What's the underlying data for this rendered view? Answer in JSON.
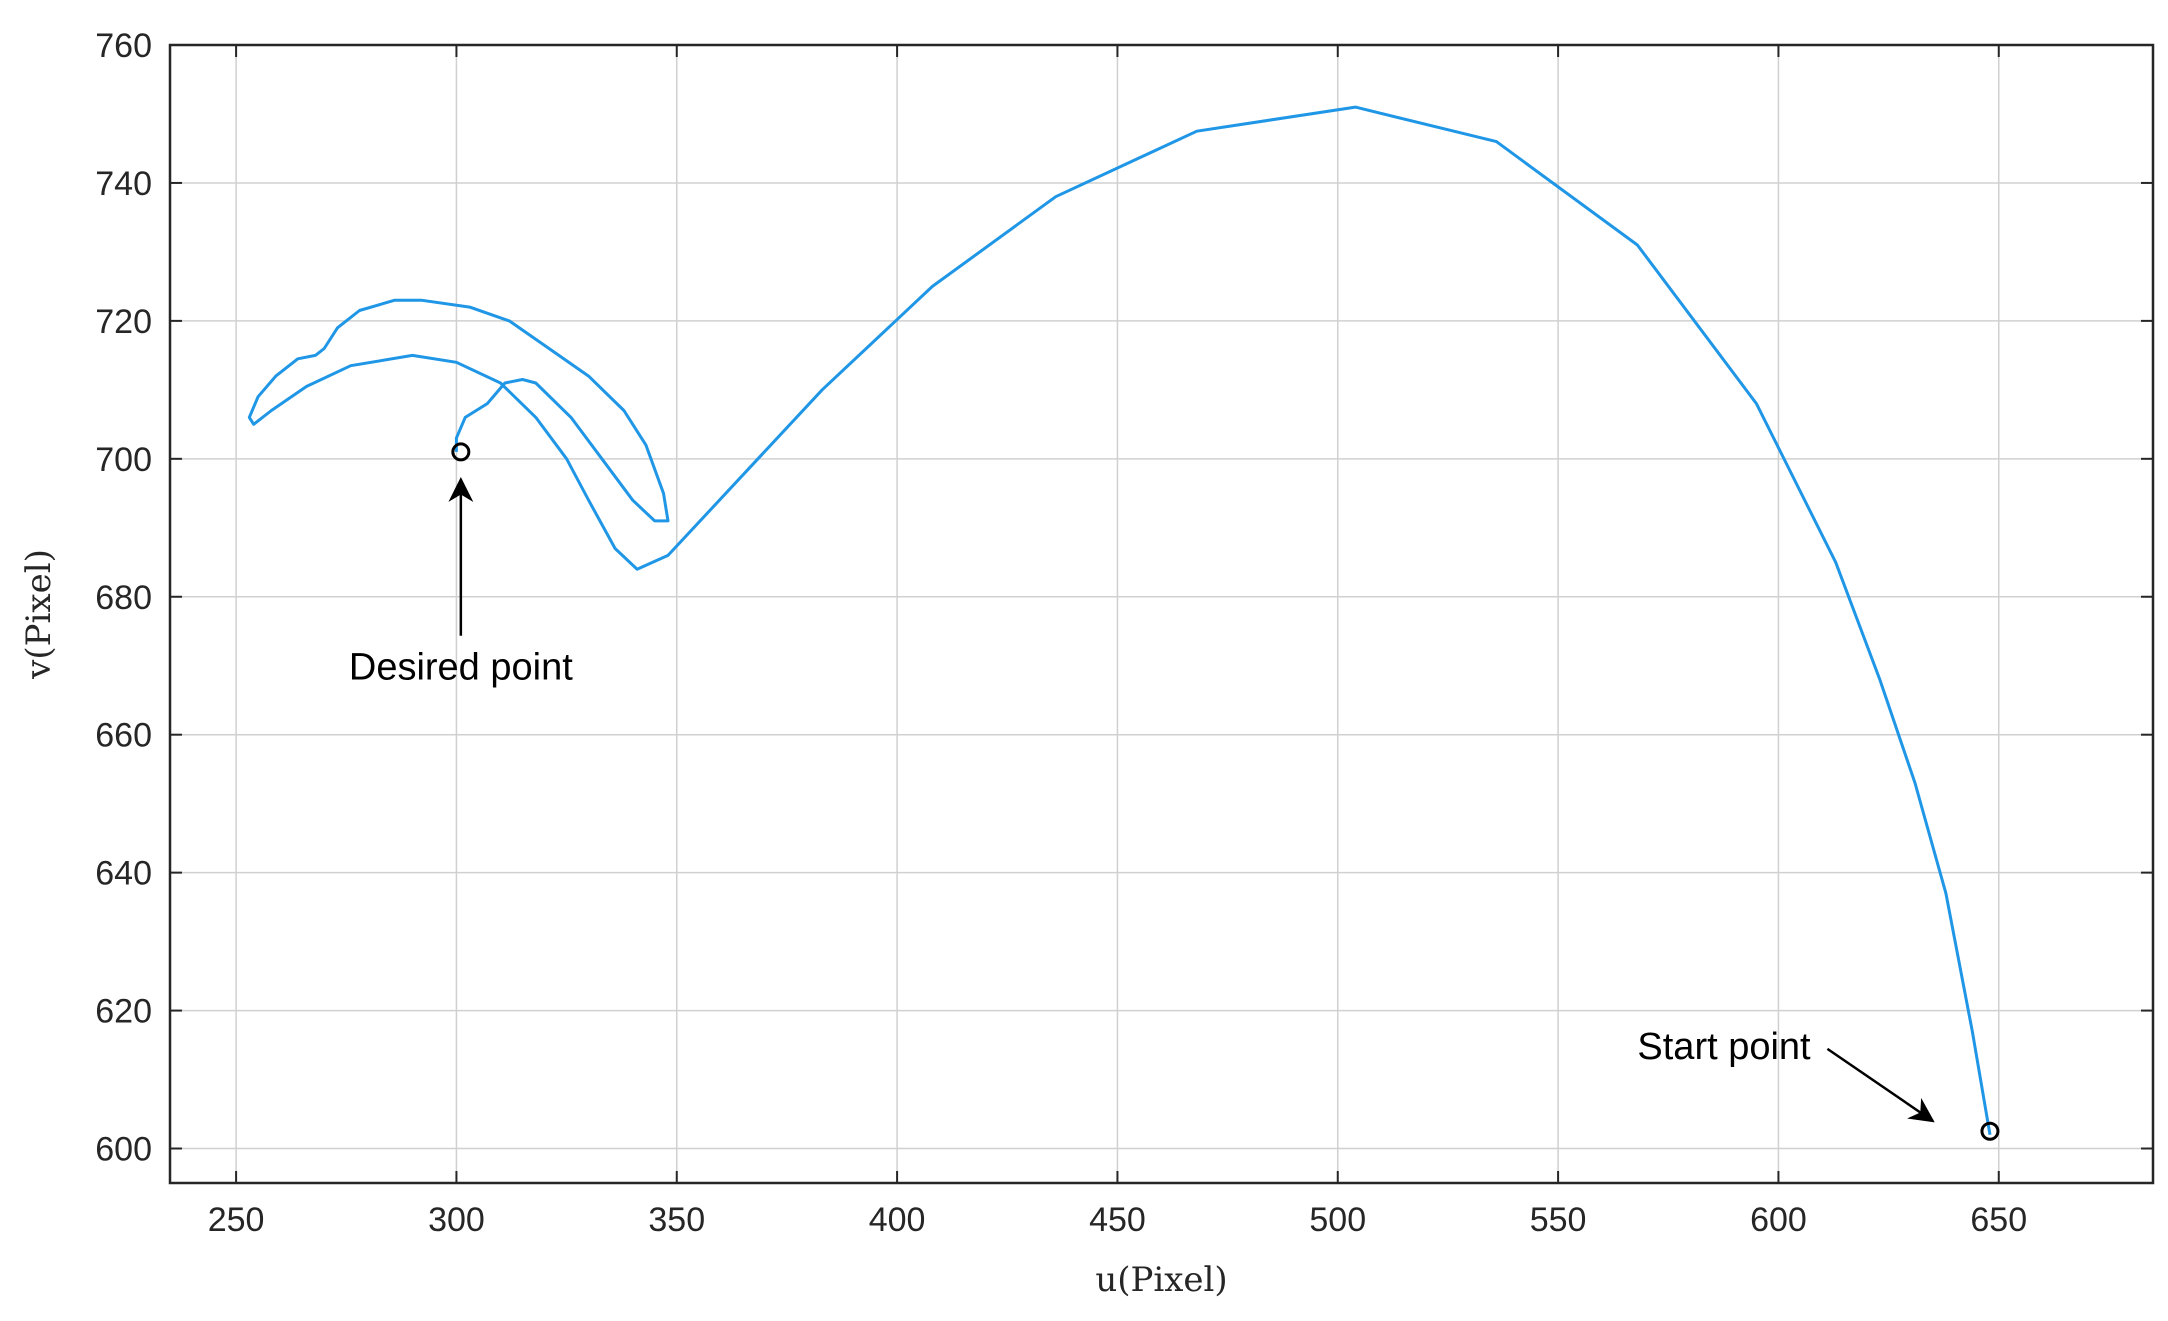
{
  "chart_data": {
    "type": "line",
    "xlabel": "u(Pixel)",
    "ylabel": "v(Pixel)",
    "xlim": [
      235,
      685
    ],
    "ylim": [
      595,
      760
    ],
    "xticks": [
      250,
      300,
      350,
      400,
      450,
      500,
      550,
      600,
      650
    ],
    "yticks": [
      600,
      620,
      640,
      660,
      680,
      700,
      720,
      740,
      760
    ],
    "grid": true,
    "colors": {
      "line": "#1f96e6",
      "marker": "#000000",
      "grid": "#d0d0d0"
    },
    "series": [
      {
        "points": [
          [
            648,
            602
          ],
          [
            644,
            617
          ],
          [
            638,
            637
          ],
          [
            631,
            653
          ],
          [
            623,
            668
          ],
          [
            613,
            685
          ],
          [
            595,
            708
          ],
          [
            568,
            731
          ],
          [
            536,
            746
          ],
          [
            504,
            751
          ],
          [
            468,
            747.5
          ],
          [
            436,
            738
          ],
          [
            408,
            725
          ],
          [
            383,
            710
          ],
          [
            348,
            686
          ],
          [
            341,
            684
          ],
          [
            336,
            687
          ],
          [
            330,
            694
          ],
          [
            325,
            700
          ],
          [
            318,
            706
          ],
          [
            310,
            711
          ],
          [
            300,
            714
          ],
          [
            290,
            715
          ],
          [
            276,
            713.5
          ],
          [
            266,
            710.5
          ],
          [
            258,
            707
          ],
          [
            254,
            705
          ],
          [
            253,
            706
          ],
          [
            255,
            709
          ],
          [
            259,
            712
          ],
          [
            264,
            714.5
          ],
          [
            268,
            715
          ],
          [
            270,
            716
          ],
          [
            273,
            719
          ],
          [
            278,
            721.5
          ],
          [
            286,
            723
          ],
          [
            292,
            723
          ],
          [
            303,
            722
          ],
          [
            312,
            720
          ],
          [
            321,
            716
          ],
          [
            330,
            712
          ],
          [
            338,
            707
          ],
          [
            343,
            702
          ],
          [
            347,
            695
          ],
          [
            348,
            691
          ],
          [
            345,
            691
          ],
          [
            340,
            694
          ],
          [
            333,
            700
          ],
          [
            326,
            706
          ],
          [
            318,
            711
          ],
          [
            315,
            711.5
          ],
          [
            311,
            711
          ],
          [
            307,
            708
          ],
          [
            302,
            706
          ],
          [
            300,
            703
          ],
          [
            300,
            701
          ]
        ]
      }
    ],
    "markers": [
      {
        "label": "Desired point",
        "u": 301,
        "v": 701
      },
      {
        "label": "Start point",
        "u": 648,
        "v": 602.5
      }
    ],
    "annotations": [
      {
        "text": "Desired point",
        "text_at": [
          301,
          670
        ],
        "arrow_to": [
          301,
          697
        ]
      },
      {
        "text": "Start point",
        "text_at": [
          568,
          613
        ],
        "arrow_to": [
          635,
          604
        ]
      }
    ]
  }
}
